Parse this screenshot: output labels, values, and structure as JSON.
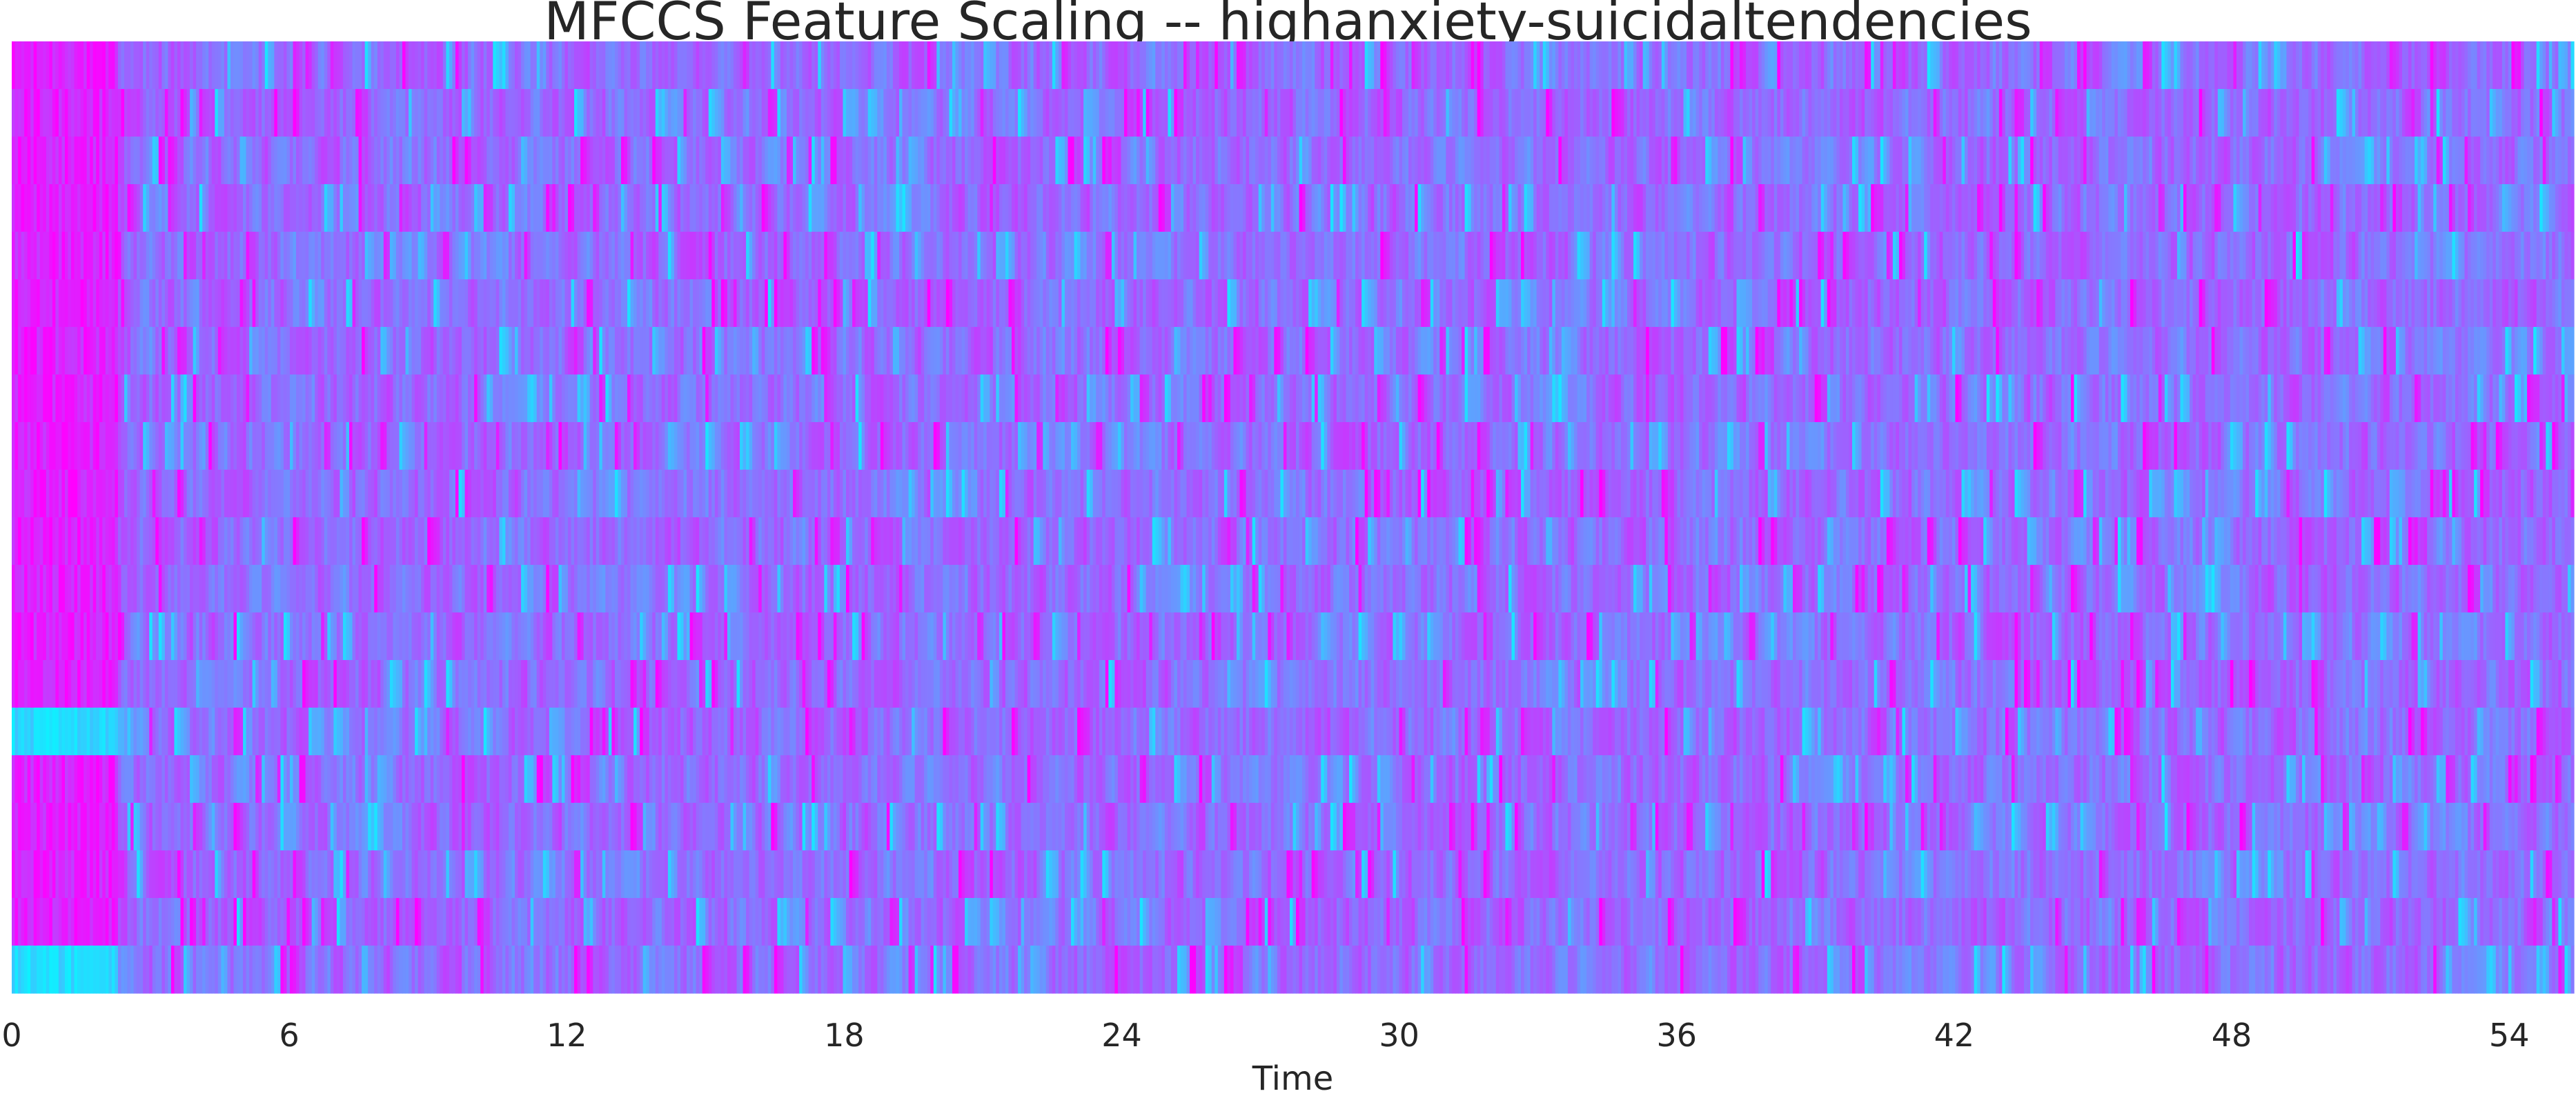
{
  "chart_data": {
    "type": "heatmap",
    "title": "MFCCS Feature Scaling -- highanxiety-suicidaltendencies",
    "xlabel": "Time",
    "ylabel": "",
    "colormap": "cool",
    "colormap_endpoints": [
      "#00ffff",
      "#ff00ff"
    ],
    "value_range": [
      0,
      1
    ],
    "n_coefficients": 20,
    "xlim": [
      0,
      55.4
    ],
    "x_ticks": [
      0,
      6,
      12,
      18,
      24,
      30,
      36,
      42,
      48,
      54
    ],
    "x_tick_labels": [
      "0",
      "6",
      "12",
      "18",
      "24",
      "30",
      "36",
      "42",
      "48",
      "54"
    ],
    "y_ticks_visible": false,
    "grid": false,
    "colorbar": false
  }
}
